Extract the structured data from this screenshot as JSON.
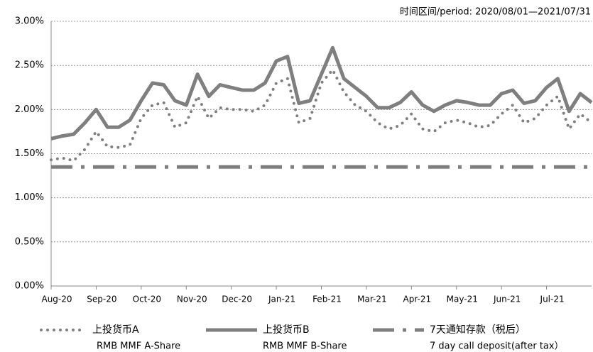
{
  "chart_data": {
    "type": "line",
    "annotation": "时间区间/period: 2020/08/01—2021/07/31",
    "categories": [
      "Aug-20",
      null,
      null,
      null,
      "Sep-20",
      null,
      null,
      null,
      "Oct-20",
      null,
      null,
      null,
      "Nov-20",
      null,
      null,
      null,
      "Dec-20",
      null,
      null,
      null,
      "Jan-21",
      null,
      null,
      null,
      "Feb-21",
      null,
      null,
      null,
      "Mar-21",
      null,
      null,
      null,
      "Apr-21",
      null,
      null,
      null,
      "May-21",
      null,
      null,
      null,
      "Jun-21",
      null,
      null,
      null,
      "Jul-21",
      null,
      null,
      null,
      null
    ],
    "series": [
      {
        "name": "上投货币A",
        "name_en": "RMB MMF A-Share",
        "color": "#7f7f7f",
        "style": "dotted",
        "values": [
          1.43,
          1.45,
          1.42,
          1.55,
          1.75,
          1.58,
          1.57,
          1.6,
          1.9,
          2.05,
          2.08,
          1.8,
          1.85,
          2.15,
          1.9,
          2.02,
          2.0,
          2.0,
          1.98,
          2.05,
          2.3,
          2.35,
          1.85,
          1.9,
          2.3,
          2.45,
          2.2,
          2.05,
          1.98,
          1.85,
          1.78,
          1.82,
          1.95,
          1.78,
          1.75,
          1.85,
          1.88,
          1.85,
          1.8,
          1.82,
          1.95,
          2.05,
          1.85,
          1.9,
          2.05,
          2.15,
          1.78,
          1.95,
          1.85
        ]
      },
      {
        "name": "上投货币B",
        "name_en": "RMB MMF B-Share",
        "color": "#7f7f7f",
        "style": "solid",
        "values": [
          1.67,
          1.7,
          1.72,
          1.85,
          2.0,
          1.8,
          1.8,
          1.88,
          2.1,
          2.3,
          2.28,
          2.1,
          2.05,
          2.4,
          2.15,
          2.28,
          2.25,
          2.22,
          2.22,
          2.3,
          2.55,
          2.6,
          2.07,
          2.1,
          2.4,
          2.7,
          2.35,
          2.25,
          2.15,
          2.02,
          2.02,
          2.08,
          2.2,
          2.05,
          1.98,
          2.05,
          2.1,
          2.08,
          2.05,
          2.05,
          2.18,
          2.22,
          2.07,
          2.1,
          2.25,
          2.35,
          1.98,
          2.18,
          2.08
        ]
      },
      {
        "name": "7天通知存款（税后）",
        "name_en": "7 day call deposit(after tax）",
        "color": "#7f7f7f",
        "style": "dashdot",
        "values": [
          1.35,
          1.35,
          1.35,
          1.35,
          1.35,
          1.35,
          1.35,
          1.35,
          1.35,
          1.35,
          1.35,
          1.35,
          1.35,
          1.35,
          1.35,
          1.35,
          1.35,
          1.35,
          1.35,
          1.35,
          1.35,
          1.35,
          1.35,
          1.35,
          1.35,
          1.35,
          1.35,
          1.35,
          1.35,
          1.35,
          1.35,
          1.35,
          1.35,
          1.35,
          1.35,
          1.35,
          1.35,
          1.35,
          1.35,
          1.35,
          1.35,
          1.35,
          1.35,
          1.35,
          1.35,
          1.35,
          1.35,
          1.35,
          1.35
        ]
      }
    ],
    "ylim": [
      0,
      3
    ],
    "yticks": [
      {
        "value": 0,
        "label": "0.00%"
      },
      {
        "value": 0.5,
        "label": "0.50%"
      },
      {
        "value": 1,
        "label": "1.00%"
      },
      {
        "value": 1.5,
        "label": "1.50%"
      },
      {
        "value": 2,
        "label": "2.00%"
      },
      {
        "value": 2.5,
        "label": "2.50%"
      },
      {
        "value": 3,
        "label": "3.00%"
      }
    ],
    "grid": true
  }
}
